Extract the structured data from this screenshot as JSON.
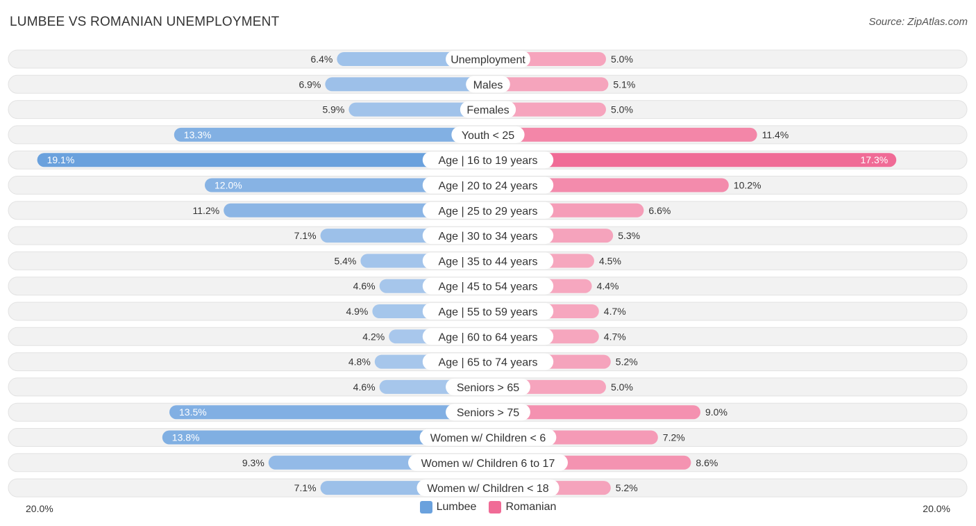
{
  "title": "LUMBEE VS ROMANIAN UNEMPLOYMENT",
  "source": "Source: ZipAtlas.com",
  "colors": {
    "lumbee": "#6aa1dd",
    "lumbee_light": "#a9c8ec",
    "romanian": "#f06b96",
    "romanian_light": "#f6a9c0",
    "row_bg": "#f1f1f1"
  },
  "axis": {
    "left_label": "20.0%",
    "right_label": "20.0%"
  },
  "legend": [
    {
      "label": "Lumbee",
      "color": "#6aa1dd"
    },
    {
      "label": "Romanian",
      "color": "#f06b96"
    }
  ],
  "chart_data": {
    "type": "bar",
    "orientation": "horizontal-diverging",
    "title": "LUMBEE VS ROMANIAN UNEMPLOYMENT",
    "xlim": [
      0,
      20
    ],
    "categories": [
      "Unemployment",
      "Males",
      "Females",
      "Youth < 25",
      "Age | 16 to 19 years",
      "Age | 20 to 24 years",
      "Age | 25 to 29 years",
      "Age | 30 to 34 years",
      "Age | 35 to 44 years",
      "Age | 45 to 54 years",
      "Age | 55 to 59 years",
      "Age | 60 to 64 years",
      "Age | 65 to 74 years",
      "Seniors > 65",
      "Seniors > 75",
      "Women w/ Children < 6",
      "Women w/ Children 6 to 17",
      "Women w/ Children < 18"
    ],
    "series": [
      {
        "name": "Lumbee",
        "values": [
          6.4,
          6.9,
          5.9,
          13.3,
          19.1,
          12.0,
          11.2,
          7.1,
          5.4,
          4.6,
          4.9,
          4.2,
          4.8,
          4.6,
          13.5,
          13.8,
          9.3,
          7.1
        ]
      },
      {
        "name": "Romanian",
        "values": [
          5.0,
          5.1,
          5.0,
          11.4,
          17.3,
          10.2,
          6.6,
          5.3,
          4.5,
          4.4,
          4.7,
          4.7,
          5.2,
          5.0,
          9.0,
          7.2,
          8.6,
          5.2
        ]
      }
    ],
    "labels_left": [
      "6.4%",
      "6.9%",
      "5.9%",
      "13.3%",
      "19.1%",
      "12.0%",
      "11.2%",
      "7.1%",
      "5.4%",
      "4.6%",
      "4.9%",
      "4.2%",
      "4.8%",
      "4.6%",
      "13.5%",
      "13.8%",
      "9.3%",
      "7.1%"
    ],
    "labels_right": [
      "5.0%",
      "5.1%",
      "5.0%",
      "11.4%",
      "17.3%",
      "10.2%",
      "6.6%",
      "5.3%",
      "4.5%",
      "4.4%",
      "4.7%",
      "4.7%",
      "5.2%",
      "5.0%",
      "9.0%",
      "7.2%",
      "8.6%",
      "5.2%"
    ]
  }
}
